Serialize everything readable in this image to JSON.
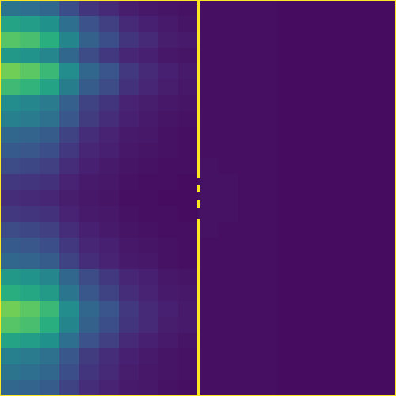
{
  "chart_data": {
    "type": "heatmap",
    "tick_labels": false,
    "xlim": [
      0,
      100
    ],
    "ylim": [
      100,
      0
    ],
    "color_range": [
      0,
      1
    ],
    "cells": [
      [
        0.38,
        0.36,
        0.33,
        0.24,
        0.17,
        0.14,
        0.1,
        0.08,
        0.07,
        0.06,
        0.05,
        0.05,
        0.05,
        0.05,
        0.04,
        0.04,
        0.04,
        0.04,
        0.04,
        0.04
      ],
      [
        0.58,
        0.55,
        0.5,
        0.36,
        0.25,
        0.2,
        0.14,
        0.11,
        0.09,
        0.07,
        0.05,
        0.05,
        0.05,
        0.05,
        0.04,
        0.04,
        0.04,
        0.04,
        0.04,
        0.04
      ],
      [
        0.73,
        0.7,
        0.63,
        0.45,
        0.31,
        0.24,
        0.17,
        0.14,
        0.1,
        0.09,
        0.05,
        0.05,
        0.05,
        0.05,
        0.04,
        0.04,
        0.04,
        0.04,
        0.04,
        0.04
      ],
      [
        0.53,
        0.51,
        0.46,
        0.33,
        0.23,
        0.18,
        0.13,
        0.11,
        0.08,
        0.07,
        0.05,
        0.05,
        0.05,
        0.05,
        0.04,
        0.04,
        0.04,
        0.04,
        0.04,
        0.04
      ],
      [
        0.78,
        0.74,
        0.67,
        0.48,
        0.33,
        0.26,
        0.18,
        0.14,
        0.11,
        0.09,
        0.05,
        0.05,
        0.05,
        0.05,
        0.04,
        0.04,
        0.04,
        0.04,
        0.04,
        0.04
      ],
      [
        0.68,
        0.65,
        0.58,
        0.42,
        0.29,
        0.23,
        0.16,
        0.13,
        0.1,
        0.08,
        0.05,
        0.05,
        0.05,
        0.05,
        0.04,
        0.04,
        0.04,
        0.04,
        0.04,
        0.04
      ],
      [
        0.48,
        0.46,
        0.41,
        0.3,
        0.21,
        0.17,
        0.12,
        0.1,
        0.08,
        0.07,
        0.05,
        0.05,
        0.05,
        0.05,
        0.04,
        0.04,
        0.04,
        0.04,
        0.04,
        0.04
      ],
      [
        0.43,
        0.41,
        0.37,
        0.27,
        0.19,
        0.15,
        0.11,
        0.09,
        0.07,
        0.06,
        0.05,
        0.05,
        0.05,
        0.05,
        0.04,
        0.04,
        0.04,
        0.04,
        0.04,
        0.04
      ],
      [
        0.33,
        0.32,
        0.29,
        0.21,
        0.15,
        0.12,
        0.09,
        0.08,
        0.06,
        0.05,
        0.05,
        0.05,
        0.05,
        0.05,
        0.04,
        0.04,
        0.04,
        0.04,
        0.04,
        0.04
      ],
      [
        0.28,
        0.27,
        0.24,
        0.18,
        0.13,
        0.11,
        0.08,
        0.07,
        0.06,
        0.05,
        0.05,
        0.05,
        0.05,
        0.05,
        0.04,
        0.04,
        0.04,
        0.04,
        0.04,
        0.04
      ],
      [
        0.23,
        0.22,
        0.2,
        0.15,
        0.11,
        0.09,
        0.07,
        0.06,
        0.05,
        0.05,
        0.06,
        0.05,
        0.05,
        0.05,
        0.04,
        0.04,
        0.04,
        0.04,
        0.04,
        0.04
      ],
      [
        0.18,
        0.17,
        0.16,
        0.12,
        0.09,
        0.08,
        0.06,
        0.05,
        0.05,
        0.04,
        0.06,
        0.06,
        0.05,
        0.05,
        0.04,
        0.04,
        0.04,
        0.04,
        0.04,
        0.04
      ],
      [
        0.15,
        0.14,
        0.13,
        0.1,
        0.08,
        0.07,
        0.05,
        0.05,
        0.04,
        0.04,
        0.06,
        0.06,
        0.05,
        0.05,
        0.04,
        0.04,
        0.04,
        0.04,
        0.04,
        0.04
      ],
      [
        0.18,
        0.17,
        0.16,
        0.12,
        0.09,
        0.08,
        0.06,
        0.05,
        0.05,
        0.04,
        0.06,
        0.06,
        0.05,
        0.05,
        0.04,
        0.04,
        0.04,
        0.04,
        0.04,
        0.04
      ],
      [
        0.23,
        0.22,
        0.2,
        0.15,
        0.11,
        0.09,
        0.07,
        0.06,
        0.05,
        0.05,
        0.06,
        0.05,
        0.05,
        0.05,
        0.04,
        0.04,
        0.04,
        0.04,
        0.04,
        0.04
      ],
      [
        0.28,
        0.27,
        0.24,
        0.18,
        0.13,
        0.11,
        0.08,
        0.07,
        0.06,
        0.05,
        0.05,
        0.05,
        0.05,
        0.05,
        0.04,
        0.04,
        0.04,
        0.04,
        0.04,
        0.04
      ],
      [
        0.33,
        0.32,
        0.29,
        0.21,
        0.15,
        0.12,
        0.09,
        0.08,
        0.06,
        0.05,
        0.05,
        0.05,
        0.05,
        0.05,
        0.04,
        0.04,
        0.04,
        0.04,
        0.04,
        0.04
      ],
      [
        0.53,
        0.51,
        0.46,
        0.33,
        0.23,
        0.18,
        0.13,
        0.11,
        0.08,
        0.07,
        0.05,
        0.05,
        0.05,
        0.05,
        0.04,
        0.04,
        0.04,
        0.04,
        0.04,
        0.04
      ],
      [
        0.63,
        0.6,
        0.54,
        0.39,
        0.27,
        0.21,
        0.15,
        0.12,
        0.09,
        0.08,
        0.05,
        0.05,
        0.05,
        0.05,
        0.04,
        0.04,
        0.04,
        0.04,
        0.04,
        0.04
      ],
      [
        0.78,
        0.74,
        0.67,
        0.48,
        0.33,
        0.26,
        0.18,
        0.14,
        0.11,
        0.09,
        0.05,
        0.05,
        0.05,
        0.05,
        0.04,
        0.04,
        0.04,
        0.04,
        0.04,
        0.04
      ],
      [
        0.73,
        0.7,
        0.63,
        0.45,
        0.31,
        0.24,
        0.17,
        0.14,
        0.1,
        0.09,
        0.05,
        0.05,
        0.05,
        0.05,
        0.04,
        0.04,
        0.04,
        0.04,
        0.04,
        0.04
      ],
      [
        0.58,
        0.55,
        0.5,
        0.36,
        0.25,
        0.2,
        0.14,
        0.11,
        0.09,
        0.07,
        0.05,
        0.05,
        0.05,
        0.05,
        0.04,
        0.04,
        0.04,
        0.04,
        0.04,
        0.04
      ],
      [
        0.43,
        0.41,
        0.37,
        0.27,
        0.19,
        0.15,
        0.11,
        0.09,
        0.07,
        0.06,
        0.05,
        0.05,
        0.05,
        0.05,
        0.04,
        0.04,
        0.04,
        0.04,
        0.04,
        0.04
      ],
      [
        0.38,
        0.36,
        0.33,
        0.24,
        0.17,
        0.14,
        0.1,
        0.08,
        0.07,
        0.06,
        0.05,
        0.05,
        0.05,
        0.05,
        0.04,
        0.04,
        0.04,
        0.04,
        0.04,
        0.04
      ],
      [
        0.33,
        0.32,
        0.29,
        0.21,
        0.15,
        0.12,
        0.09,
        0.08,
        0.06,
        0.05,
        0.05,
        0.05,
        0.05,
        0.05,
        0.04,
        0.04,
        0.04,
        0.04,
        0.04,
        0.04
      ]
    ],
    "barrier": {
      "x": 50,
      "value": 1,
      "segments": [
        [
          0,
          45
        ],
        [
          46.6,
          48.6
        ],
        [
          50.6,
          52.6
        ],
        [
          55.2,
          100
        ]
      ]
    }
  }
}
